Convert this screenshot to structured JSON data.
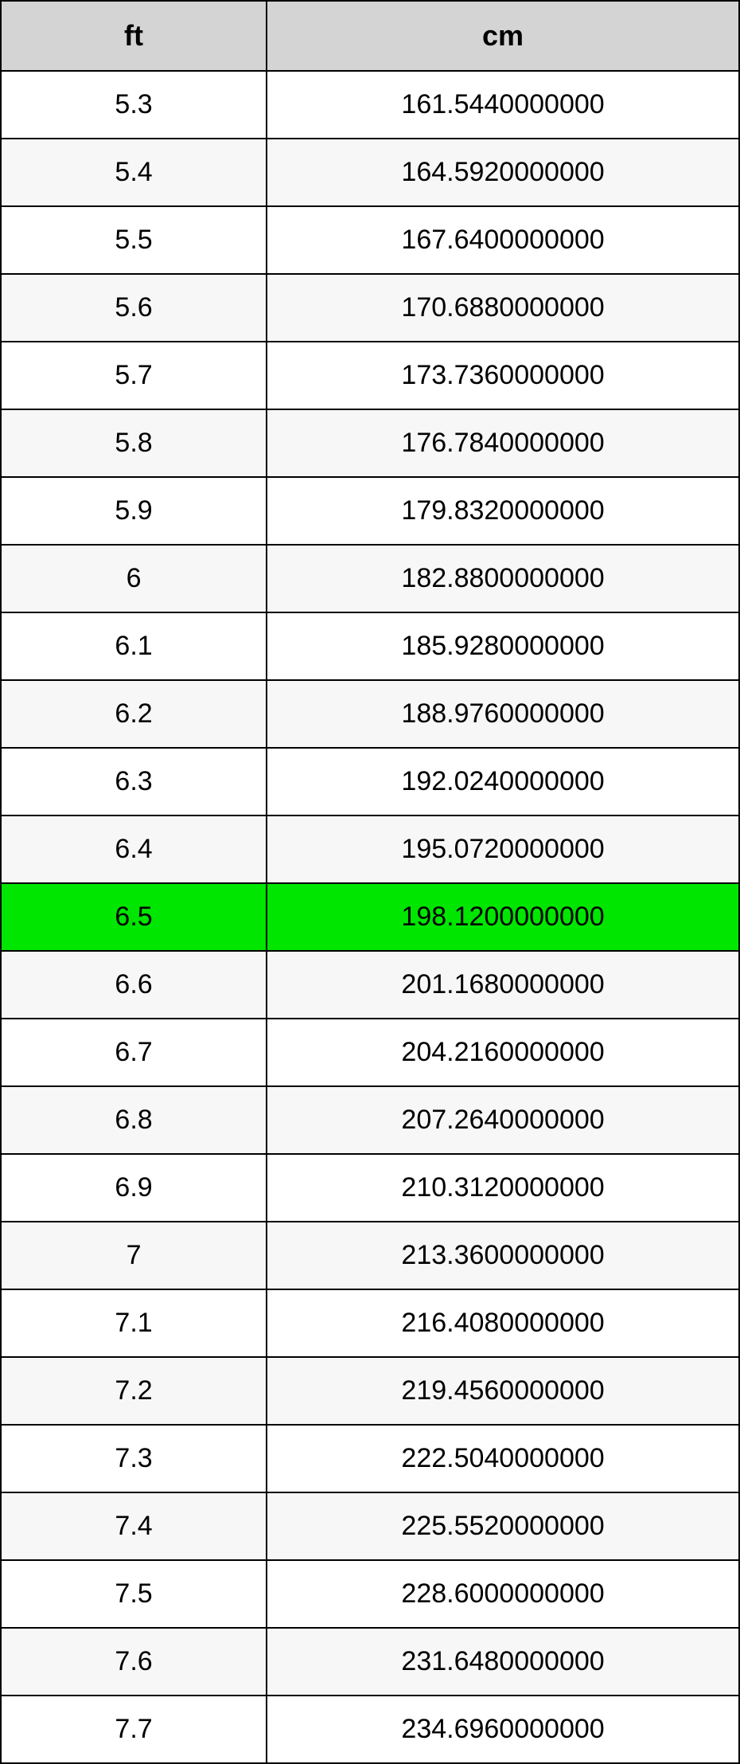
{
  "table": {
    "columns": [
      {
        "label": "ft"
      },
      {
        "label": "cm"
      }
    ],
    "rows": [
      {
        "ft": "5.3",
        "cm": "161.5440000000",
        "highlight": false
      },
      {
        "ft": "5.4",
        "cm": "164.5920000000",
        "highlight": false
      },
      {
        "ft": "5.5",
        "cm": "167.6400000000",
        "highlight": false
      },
      {
        "ft": "5.6",
        "cm": "170.6880000000",
        "highlight": false
      },
      {
        "ft": "5.7",
        "cm": "173.7360000000",
        "highlight": false
      },
      {
        "ft": "5.8",
        "cm": "176.7840000000",
        "highlight": false
      },
      {
        "ft": "5.9",
        "cm": "179.8320000000",
        "highlight": false
      },
      {
        "ft": "6",
        "cm": "182.8800000000",
        "highlight": false
      },
      {
        "ft": "6.1",
        "cm": "185.9280000000",
        "highlight": false
      },
      {
        "ft": "6.2",
        "cm": "188.9760000000",
        "highlight": false
      },
      {
        "ft": "6.3",
        "cm": "192.0240000000",
        "highlight": false
      },
      {
        "ft": "6.4",
        "cm": "195.0720000000",
        "highlight": false
      },
      {
        "ft": "6.5",
        "cm": "198.1200000000",
        "highlight": true
      },
      {
        "ft": "6.6",
        "cm": "201.1680000000",
        "highlight": false
      },
      {
        "ft": "6.7",
        "cm": "204.2160000000",
        "highlight": false
      },
      {
        "ft": "6.8",
        "cm": "207.2640000000",
        "highlight": false
      },
      {
        "ft": "6.9",
        "cm": "210.3120000000",
        "highlight": false
      },
      {
        "ft": "7",
        "cm": "213.3600000000",
        "highlight": false
      },
      {
        "ft": "7.1",
        "cm": "216.4080000000",
        "highlight": false
      },
      {
        "ft": "7.2",
        "cm": "219.4560000000",
        "highlight": false
      },
      {
        "ft": "7.3",
        "cm": "222.5040000000",
        "highlight": false
      },
      {
        "ft": "7.4",
        "cm": "225.5520000000",
        "highlight": false
      },
      {
        "ft": "7.5",
        "cm": "228.6000000000",
        "highlight": false
      },
      {
        "ft": "7.6",
        "cm": "231.6480000000",
        "highlight": false
      },
      {
        "ft": "7.7",
        "cm": "234.6960000000",
        "highlight": false
      }
    ],
    "colors": {
      "header_bg": "#d4d4d4",
      "border": "#000000",
      "row_odd_bg": "#ffffff",
      "row_even_bg": "#f7f7f7",
      "highlight_bg": "#00e600",
      "text": "#000000"
    },
    "typography": {
      "header_fontsize": 36,
      "header_fontweight": "bold",
      "cell_fontsize": 34,
      "font_family": "Arial"
    },
    "layout": {
      "col1_width_pct": 36,
      "col2_width_pct": 64,
      "border_width": 2,
      "cell_padding_v": 22
    }
  }
}
